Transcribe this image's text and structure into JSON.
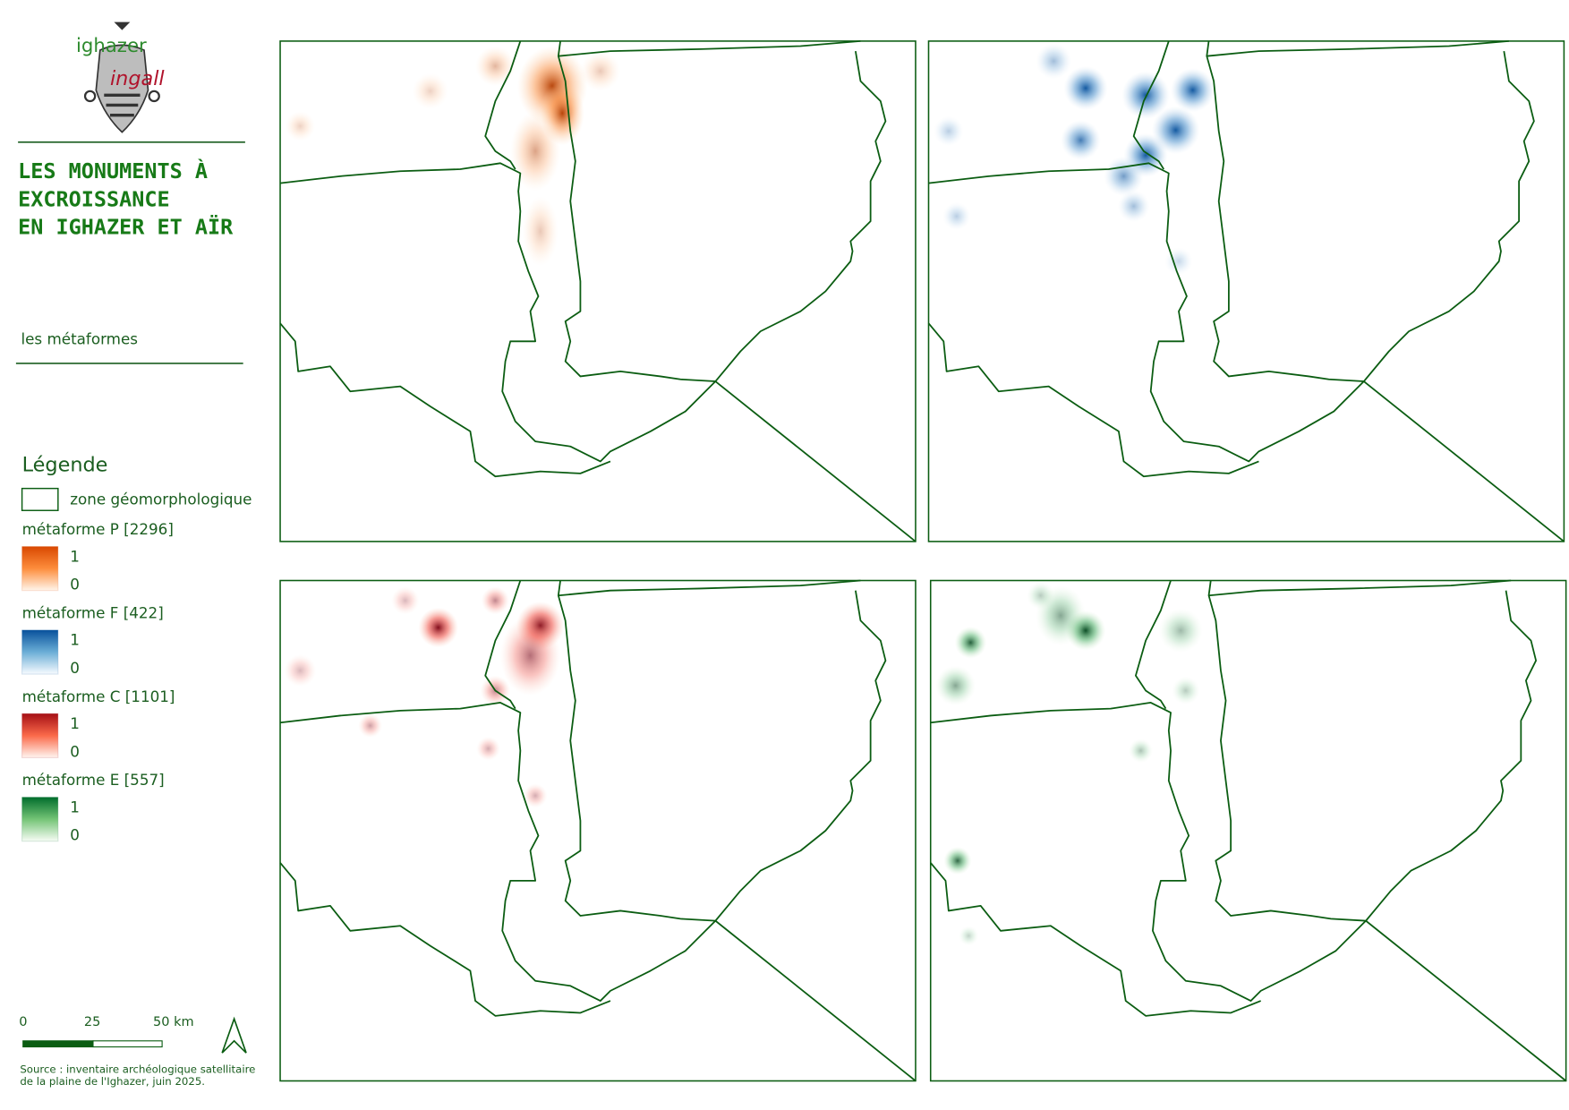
{
  "logo": {
    "top": "ighazer",
    "bottom": "ingall"
  },
  "title": [
    "LES MONUMENTS À",
    "EXCROISSANCE",
    "EN IGHAZER ET AÏR"
  ],
  "subtitle": "les métaformes",
  "legend": {
    "title": "Légende",
    "zone": "zone géomorphologique",
    "items": [
      {
        "name": "métaforme P [2296]",
        "max": 1,
        "min": 0,
        "color": "#d94801"
      },
      {
        "name": "métaforme F [422]",
        "max": 1,
        "min": 0,
        "color": "#08519c"
      },
      {
        "name": "métaforme C [1101]",
        "max": 1,
        "min": 0,
        "color": "#a50f15"
      },
      {
        "name": "métaforme E [557]",
        "max": 1,
        "min": 0,
        "color": "#006d2c"
      }
    ]
  },
  "scale": {
    "labels": [
      "0",
      "25",
      "50 km"
    ]
  },
  "source": [
    "Source : inventaire archéologique satellitaire",
    "de la plaine de l'Ighazer, juin 2025."
  ]
}
